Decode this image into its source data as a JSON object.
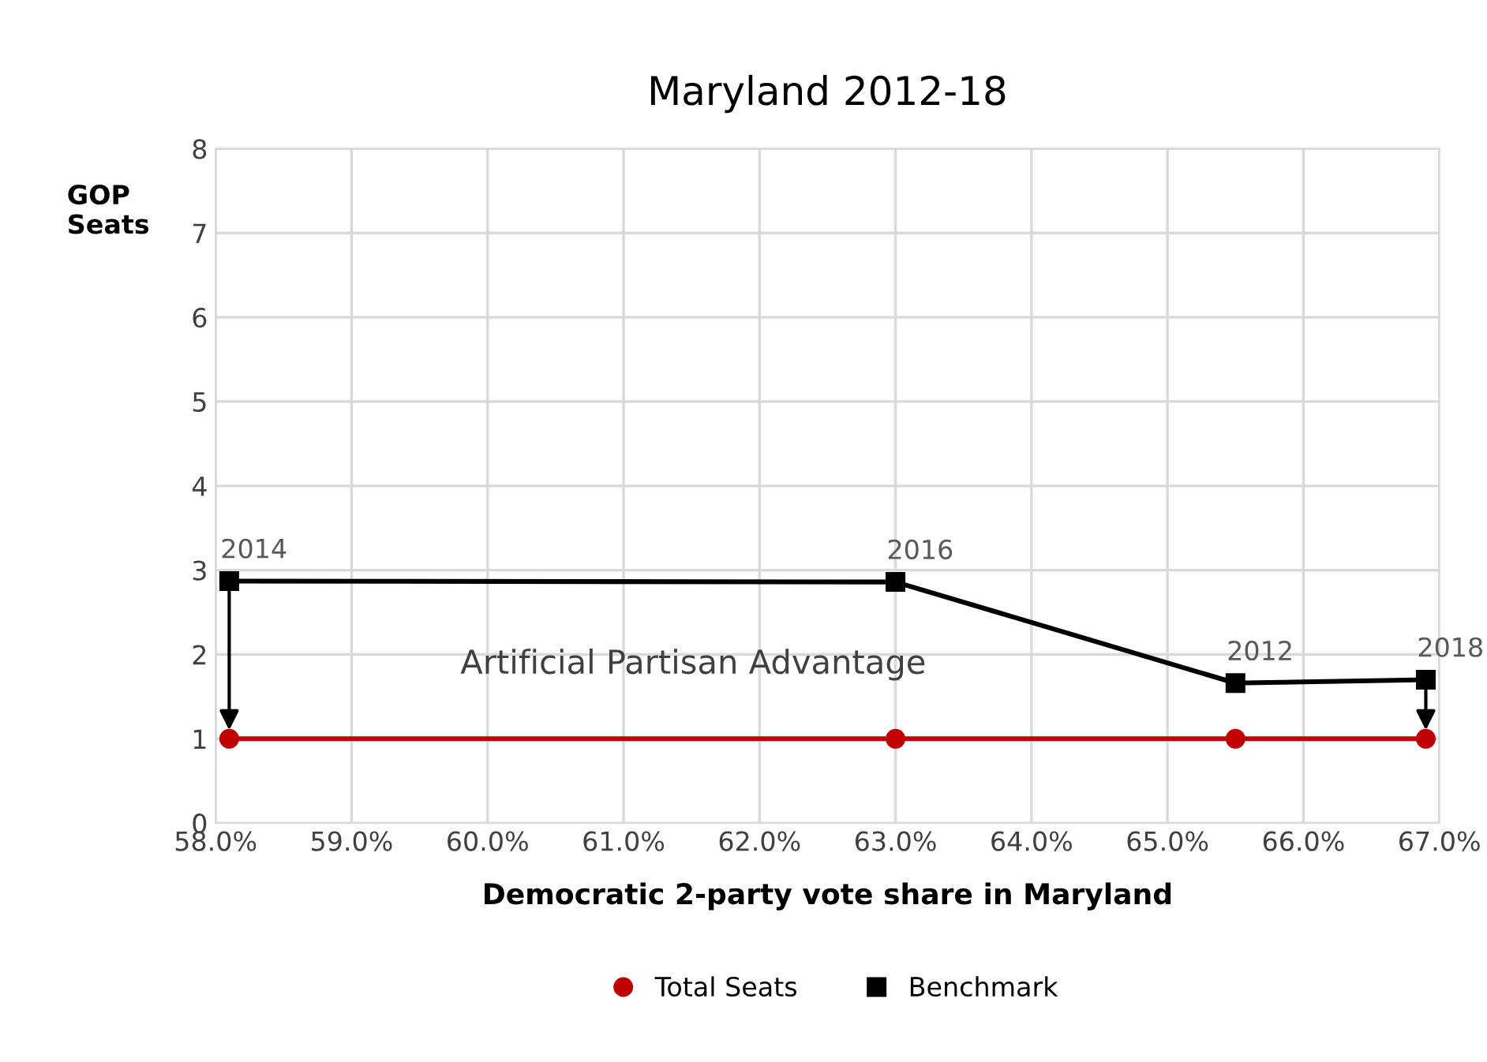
{
  "chart_data": {
    "type": "line",
    "title": "Maryland 2012-18",
    "xlabel": "Democratic 2-party vote share in Maryland",
    "ylabel": "GOP Seats",
    "series": [
      {
        "name": "Total Seats",
        "color": "#c00000",
        "marker": "circle",
        "x": [
          58.1,
          63.0,
          65.5,
          66.9
        ],
        "values": [
          1,
          1,
          1,
          1
        ]
      },
      {
        "name": "Benchmark",
        "color": "#000000",
        "marker": "square",
        "x": [
          58.1,
          63.0,
          65.5,
          66.9
        ],
        "values": [
          2.87,
          2.86,
          1.66,
          1.7
        ]
      }
    ],
    "annotations": [
      {
        "text": "2014",
        "x": 58.1,
        "y": 2.87
      },
      {
        "text": "2016",
        "x": 63.0,
        "y": 2.86
      },
      {
        "text": "2012",
        "x": 65.5,
        "y": 1.66
      },
      {
        "text": "2018",
        "x": 66.9,
        "y": 1.7
      },
      "Artificial Partisan Advantage"
    ],
    "xlim": [
      58,
      67
    ],
    "xticks": [
      {
        "value": 58,
        "label": "58.0%"
      },
      {
        "value": 59,
        "label": "59.0%"
      },
      {
        "value": 60,
        "label": "60.0%"
      },
      {
        "value": 61,
        "label": "61.0%"
      },
      {
        "value": 62,
        "label": "62.0%"
      },
      {
        "value": 63,
        "label": "63.0%"
      },
      {
        "value": 64,
        "label": "64.0%"
      },
      {
        "value": 65,
        "label": "65.0%"
      },
      {
        "value": 66,
        "label": "66.0%"
      },
      {
        "value": 67,
        "label": "67.0%"
      }
    ],
    "ylim": [
      0,
      8
    ],
    "yticks": [
      0,
      1,
      2,
      3,
      4,
      5,
      6,
      7,
      8
    ],
    "grid": true,
    "legend": "bottom"
  }
}
